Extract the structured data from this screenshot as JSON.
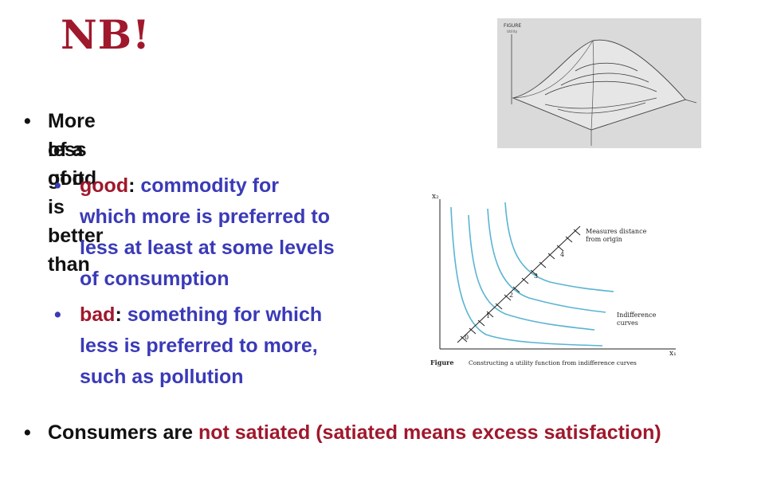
{
  "slide": {
    "title": "NB!",
    "bullet1": {
      "line1": "More of a good is better than",
      "line2": "less of it"
    },
    "sub_good": {
      "term": "good",
      "colon": ":",
      "line1": "commodity for",
      "line2": "which more is preferred to",
      "line3": "less at least at some levels",
      "line4": "of consumption"
    },
    "sub_bad": {
      "term": "bad",
      "colon": ":",
      "line1": "something for which",
      "line2": "less is preferred to more,",
      "line3": "such as pollution"
    },
    "bullet2": {
      "prefix": "Consumers are ",
      "highlight": "not satiated (satiated means excess satisfaction)"
    }
  },
  "figure_top": {
    "label": "FIGURE",
    "sublabel": "Utility"
  },
  "figure_bottom": {
    "y_axis_label": "x₂",
    "x_axis_label": "x₁",
    "ray_label_line1": "Measures distance",
    "ray_label_line2": "from origin",
    "curves_label_line1": "Indifference",
    "curves_label_line2": "curves",
    "ray_points": [
      "0",
      "1",
      "2",
      "3",
      "4"
    ],
    "caption_bold": "Figure",
    "caption_text": "Constructing a utility function from indifference curves"
  },
  "colors": {
    "title": "#a0182c",
    "accent_blue": "#3a3ab8",
    "curve": "#5ab4d2"
  }
}
